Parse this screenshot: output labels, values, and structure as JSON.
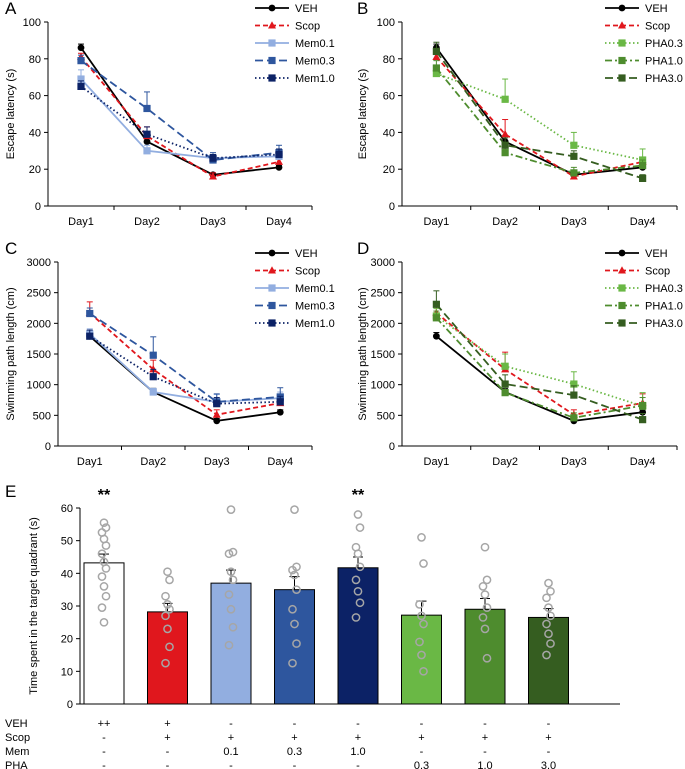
{
  "colors": {
    "VEH": "#000000",
    "Scop": "#e0171d",
    "Mem0.1": "#92aee0",
    "Mem0.3": "#2e569e",
    "Mem1.0": "#0c2266",
    "PHA0.3": "#6ab845",
    "PHA1.0": "#4e8c2e",
    "PHA3.0": "#355d20",
    "point": "#a6a6a6"
  },
  "chart_data": [
    {
      "id": "A",
      "panel_label": "A",
      "type": "line",
      "title": "",
      "xlabel": "",
      "ylabel": "Escape latency (s)",
      "categories": [
        "Day1",
        "Day2",
        "Day3",
        "Day4"
      ],
      "ylim": [
        0,
        100
      ],
      "yticks": [
        0,
        20,
        40,
        60,
        80,
        100
      ],
      "legend": "top-right",
      "series": [
        {
          "name": "VEH",
          "values": [
            86,
            35,
            17,
            21
          ],
          "err": [
            2,
            3,
            1,
            1
          ],
          "marker": "circle",
          "dash": "solid",
          "color_key": "VEH"
        },
        {
          "name": "Scop",
          "values": [
            81,
            38,
            16,
            24
          ],
          "err": [
            2,
            5,
            2,
            2
          ],
          "marker": "triangle",
          "dash": "dash",
          "color_key": "Scop"
        },
        {
          "name": "Mem0.1",
          "values": [
            69,
            30,
            26,
            27
          ],
          "err": [
            5,
            3,
            2,
            3
          ],
          "marker": "square",
          "dash": "solid",
          "color_key": "Mem0.1"
        },
        {
          "name": "Mem0.3",
          "values": [
            79,
            53,
            25,
            29
          ],
          "err": [
            3,
            9,
            4,
            4
          ],
          "marker": "square",
          "dash": "longdash",
          "color_key": "Mem0.3"
        },
        {
          "name": "Mem1.0",
          "values": [
            65,
            39,
            26,
            28
          ],
          "err": [
            3,
            4,
            2,
            3
          ],
          "marker": "square",
          "dash": "dot",
          "color_key": "Mem1.0"
        }
      ]
    },
    {
      "id": "B",
      "panel_label": "B",
      "type": "line",
      "title": "",
      "xlabel": "",
      "ylabel": "Escape latency (s)",
      "categories": [
        "Day1",
        "Day2",
        "Day3",
        "Day4"
      ],
      "ylim": [
        0,
        100
      ],
      "yticks": [
        0,
        20,
        40,
        60,
        80,
        100
      ],
      "legend": "top-right",
      "series": [
        {
          "name": "VEH",
          "values": [
            86,
            35,
            17,
            21
          ],
          "err": [
            2,
            3,
            1,
            1
          ],
          "marker": "circle",
          "dash": "solid",
          "color_key": "VEH"
        },
        {
          "name": "Scop",
          "values": [
            81,
            39,
            16,
            24
          ],
          "err": [
            2,
            8,
            2,
            2
          ],
          "marker": "triangle",
          "dash": "dash",
          "color_key": "Scop"
        },
        {
          "name": "PHA0.3",
          "values": [
            72,
            58,
            33,
            25
          ],
          "err": [
            3,
            11,
            7,
            6
          ],
          "marker": "square",
          "dash": "dot",
          "color_key": "PHA0.3"
        },
        {
          "name": "PHA1.0",
          "values": [
            75,
            29,
            18,
            22
          ],
          "err": [
            4,
            3,
            3,
            3
          ],
          "marker": "square",
          "dash": "dashdot",
          "color_key": "PHA1.0"
        },
        {
          "name": "PHA3.0",
          "values": [
            84,
            33,
            27,
            15
          ],
          "err": [
            5,
            4,
            3,
            2
          ],
          "marker": "square",
          "dash": "longdash",
          "color_key": "PHA3.0"
        }
      ]
    },
    {
      "id": "C",
      "panel_label": "C",
      "type": "line",
      "title": "",
      "xlabel": "",
      "ylabel": "Swimming path length (cm)",
      "categories": [
        "Day1",
        "Day2",
        "Day3",
        "Day4"
      ],
      "ylim": [
        0,
        3000
      ],
      "yticks": [
        0,
        500,
        1000,
        1500,
        2000,
        2500,
        3000
      ],
      "legend": "top-right",
      "series": [
        {
          "name": "VEH",
          "values": [
            1790,
            880,
            410,
            550
          ],
          "err": [
            60,
            60,
            40,
            40
          ],
          "marker": "circle",
          "dash": "solid",
          "color_key": "VEH"
        },
        {
          "name": "Scop",
          "values": [
            2170,
            1250,
            510,
            700
          ],
          "err": [
            180,
            150,
            80,
            80
          ],
          "marker": "triangle",
          "dash": "dash",
          "color_key": "Scop"
        },
        {
          "name": "Mem0.1",
          "values": [
            1830,
            880,
            720,
            780
          ],
          "err": [
            80,
            60,
            120,
            100
          ],
          "marker": "square",
          "dash": "solid",
          "color_key": "Mem0.1"
        },
        {
          "name": "Mem0.3",
          "values": [
            2160,
            1480,
            720,
            800
          ],
          "err": [
            90,
            300,
            130,
            150
          ],
          "marker": "square",
          "dash": "longdash",
          "color_key": "Mem0.3"
        },
        {
          "name": "Mem1.0",
          "values": [
            1790,
            1130,
            690,
            720
          ],
          "err": [
            100,
            120,
            100,
            90
          ],
          "marker": "square",
          "dash": "dot",
          "color_key": "Mem1.0"
        }
      ]
    },
    {
      "id": "D",
      "panel_label": "D",
      "type": "line",
      "title": "",
      "xlabel": "",
      "ylabel": "Swimming path length (cm)",
      "categories": [
        "Day1",
        "Day2",
        "Day3",
        "Day4"
      ],
      "ylim": [
        0,
        3000
      ],
      "yticks": [
        0,
        500,
        1000,
        1500,
        2000,
        2500,
        3000
      ],
      "legend": "top-right",
      "series": [
        {
          "name": "VEH",
          "values": [
            1790,
            880,
            410,
            550
          ],
          "err": [
            60,
            60,
            40,
            40
          ],
          "marker": "circle",
          "dash": "solid",
          "color_key": "VEH"
        },
        {
          "name": "Scop",
          "values": [
            2170,
            1250,
            510,
            700
          ],
          "err": [
            180,
            280,
            80,
            150
          ],
          "marker": "triangle",
          "dash": "dash",
          "color_key": "Scop"
        },
        {
          "name": "PHA0.3",
          "values": [
            2120,
            1300,
            1010,
            650
          ],
          "err": [
            120,
            200,
            200,
            220
          ],
          "marker": "square",
          "dash": "dot",
          "color_key": "PHA0.3"
        },
        {
          "name": "PHA1.0",
          "values": [
            2090,
            870,
            460,
            660
          ],
          "err": [
            110,
            90,
            80,
            130
          ],
          "marker": "square",
          "dash": "dashdot",
          "color_key": "PHA1.0"
        },
        {
          "name": "PHA3.0",
          "values": [
            2310,
            1010,
            830,
            430
          ],
          "err": [
            220,
            150,
            150,
            100
          ],
          "marker": "square",
          "dash": "longdash",
          "color_key": "PHA3.0"
        }
      ]
    },
    {
      "id": "E",
      "panel_label": "E",
      "type": "bar",
      "title": "",
      "xlabel": "",
      "ylabel": "Time spent in the target quadrant (s)",
      "ylim": [
        0,
        60
      ],
      "yticks": [
        0,
        10,
        20,
        30,
        40,
        50,
        60
      ],
      "bars": [
        {
          "group": "VEH",
          "value": 43.2,
          "err": 2.7,
          "fill_key": "white",
          "significance": "**",
          "points": [
            55.5,
            54,
            52.5,
            50.5,
            48.5,
            46,
            43.5,
            41.5,
            39,
            36,
            33,
            29.5,
            25
          ]
        },
        {
          "group": "Scop",
          "value": 28.2,
          "err": 2.6,
          "fill_key": "Scop",
          "significance": "",
          "points": [
            40.5,
            38,
            33,
            30.5,
            29,
            27,
            23,
            17.5,
            12.5
          ]
        },
        {
          "group": "Mem0.1",
          "value": 37,
          "err": 4,
          "fill_key": "Mem0.1",
          "significance": "",
          "points": [
            59.5,
            46.5,
            46,
            40.5,
            38,
            33.5,
            29,
            23.5,
            18
          ]
        },
        {
          "group": "Mem0.3",
          "value": 35,
          "err": 4,
          "fill_key": "Mem0.3",
          "significance": "",
          "points": [
            59.5,
            42,
            41,
            39.5,
            35,
            29,
            24.5,
            18.5,
            12.5
          ]
        },
        {
          "group": "Mem1.0",
          "value": 41.7,
          "err": 3.3,
          "fill_key": "Mem1.0",
          "significance": "**",
          "points": [
            58,
            54,
            48,
            46,
            42,
            38,
            34.5,
            31,
            26.5
          ]
        },
        {
          "group": "PHA0.3",
          "value": 27.2,
          "err": 4.3,
          "fill_key": "PHA0.3",
          "significance": "",
          "points": [
            51,
            43,
            30.5,
            27,
            24.5,
            19,
            15,
            10
          ]
        },
        {
          "group": "PHA1.0",
          "value": 29,
          "err": 3.3,
          "fill_key": "PHA1.0",
          "significance": "",
          "points": [
            48,
            38,
            36,
            33.5,
            29.5,
            26.5,
            23,
            14
          ]
        },
        {
          "group": "PHA3.0",
          "value": 26.5,
          "err": 2.7,
          "fill_key": "PHA3.0",
          "significance": "",
          "points": [
            37,
            34.5,
            32.5,
            29.5,
            27,
            24.5,
            21.5,
            18.5,
            15
          ]
        }
      ],
      "condition_rows": [
        {
          "label": "VEH",
          "values": [
            "++",
            "+",
            "-",
            "-",
            "-",
            "-",
            "-",
            "-"
          ]
        },
        {
          "label": "Scop",
          "values": [
            "-",
            "+",
            "+",
            "+",
            "+",
            "+",
            "+",
            "+"
          ]
        },
        {
          "label": "Mem",
          "values": [
            "-",
            "-",
            "0.1",
            "0.3",
            "1.0",
            "-",
            "-",
            "-"
          ]
        },
        {
          "label": "PHA",
          "values": [
            "-",
            "-",
            "-",
            "-",
            "-",
            "0.3",
            "1.0",
            "3.0"
          ]
        }
      ]
    }
  ]
}
